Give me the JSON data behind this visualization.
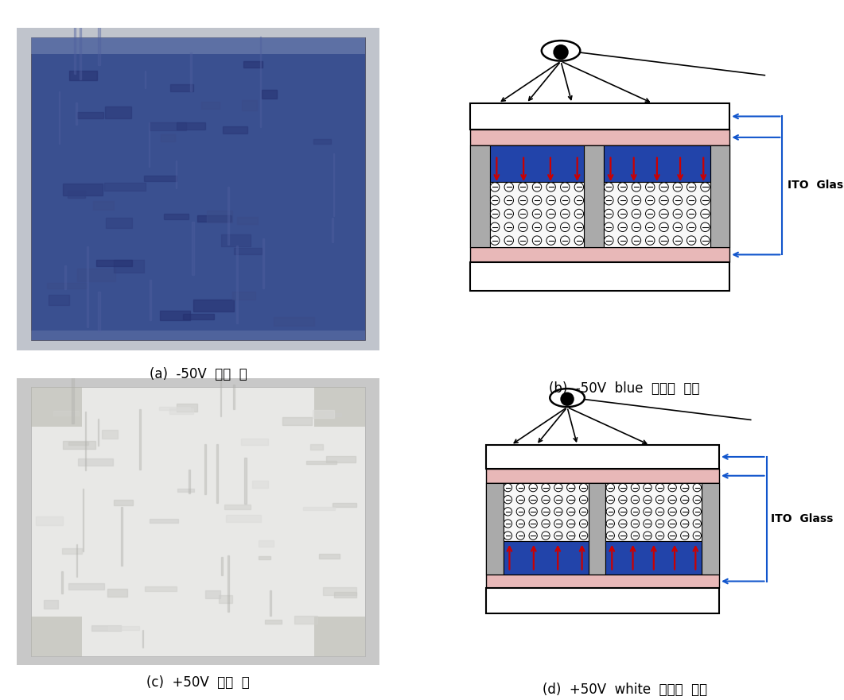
{
  "bg_color": "#ffffff",
  "caption_a": "(a)  -50V  인가  시",
  "caption_b": "(b)  -50V  blue  표시의  원리",
  "caption_c": "(c)  +50V  인가  시",
  "caption_d": "(d)  +50V  white  표시의  원리",
  "caption_fontsize": 12,
  "ito_glass_label": "ITO  Glass",
  "blue_color": "#2244aa",
  "pink_color": "#e8b8b8",
  "gray_color": "#b8b8b8",
  "spacer_color": "#aaaaaa",
  "red_arrow_color": "#cc0000",
  "blue_arrow_color": "#1155cc",
  "black_color": "#000000",
  "white_color": "#ffffff"
}
